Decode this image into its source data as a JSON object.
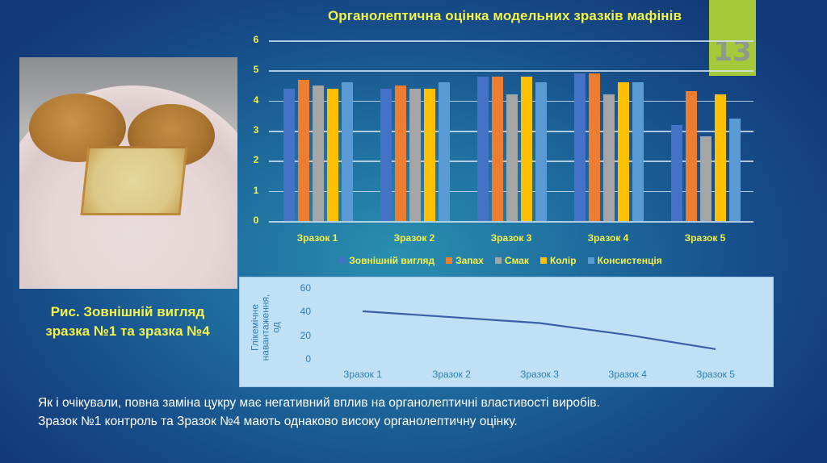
{
  "slide": {
    "title": "Органолептична оцінка модельних зразків мафінів",
    "page_number": "13",
    "caption_line1": "Рис. Зовнішній вигляд",
    "caption_line2": "зразка №1 та зразка №4",
    "photo_alt": "muffins-on-plate-photo",
    "body_text": "Як і очікували, повна заміна цукру  має негативний вплив на органолептичні властивості виробів. Зразок №1 контроль та Зразок №4 мають однаково високу органолептичну оцінку.",
    "colors": {
      "title_yellow": "#f2f24a",
      "page_box_green": "#a5c93a",
      "line_chart_bg": "#bfe0f5",
      "line_color": "#3a5faa"
    }
  },
  "chart_data": [
    {
      "type": "bar",
      "title": "Органолептична оцінка модельних зразків мафінів",
      "categories": [
        "Зразок 1",
        "Зразок 2",
        "Зразок 3",
        "Зразок 4",
        "Зразок 5"
      ],
      "series": [
        {
          "name": "Зовнішній вигляд",
          "color": "#4472c4",
          "values": [
            4.4,
            4.4,
            4.8,
            4.9,
            3.2
          ]
        },
        {
          "name": "Запах",
          "color": "#ed7d31",
          "values": [
            4.7,
            4.5,
            4.8,
            4.9,
            4.3
          ]
        },
        {
          "name": "Смак",
          "color": "#a5a5a5",
          "values": [
            4.5,
            4.4,
            4.2,
            4.2,
            2.8
          ]
        },
        {
          "name": "Колір",
          "color": "#ffc000",
          "values": [
            4.4,
            4.4,
            4.8,
            4.6,
            4.2
          ]
        },
        {
          "name": "Консистенція",
          "color": "#5b9bd5",
          "values": [
            4.6,
            4.6,
            4.6,
            4.6,
            3.4
          ]
        }
      ],
      "xlabel": "",
      "ylabel": "",
      "ylim": [
        0,
        6
      ],
      "yticks": [
        "0",
        "1",
        "2",
        "3",
        "4",
        "5",
        "6"
      ],
      "grid": true,
      "legend_position": "bottom"
    },
    {
      "type": "line",
      "title": "",
      "categories": [
        "Зразок 1",
        "Зразок 2",
        "Зразок 3",
        "Зразок 4",
        "Зразок 5"
      ],
      "series": [
        {
          "name": "Глікемічне навантаження",
          "color": "#3a5faa",
          "values": [
            41,
            36,
            31,
            21,
            9
          ]
        }
      ],
      "xlabel": "",
      "ylabel": "Глікемічне навантаження, од",
      "ylabel_line1": "Глікемічне",
      "ylabel_line2": "навантаження,",
      "ylabel_line3": "од",
      "ylim": [
        0,
        60
      ],
      "yticks": [
        "0",
        "20",
        "40",
        "60"
      ],
      "grid": false,
      "legend_position": "none"
    }
  ]
}
